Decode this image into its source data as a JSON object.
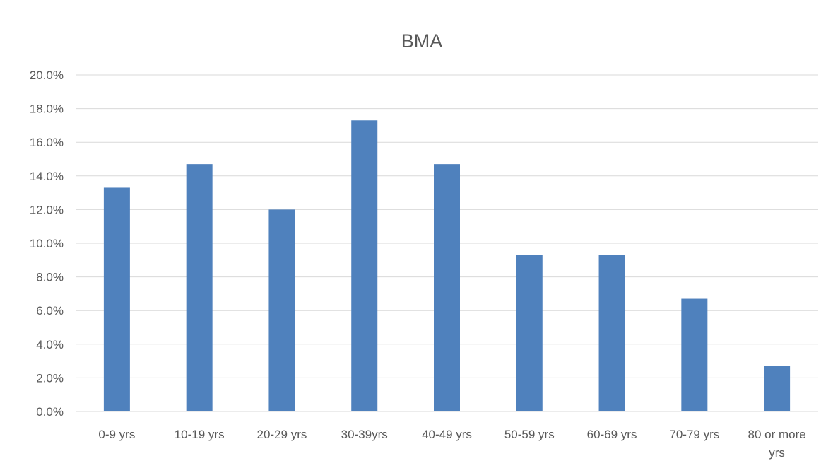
{
  "chart_data": {
    "type": "bar",
    "title": "BMA",
    "xlabel": "",
    "ylabel": "",
    "categories": [
      "0-9 yrs",
      "10-19 yrs",
      "20-29 yrs",
      "30-39yrs",
      "40-49 yrs",
      "50-59 yrs",
      "60-69 yrs",
      "70-79 yrs",
      "80 or more yrs"
    ],
    "values": [
      13.3,
      14.7,
      12.0,
      17.3,
      14.7,
      9.3,
      9.3,
      6.7,
      2.7
    ],
    "ylim": [
      0,
      20
    ],
    "yticks": [
      "0.0%",
      "2.0%",
      "4.0%",
      "6.0%",
      "8.0%",
      "10.0%",
      "12.0%",
      "14.0%",
      "16.0%",
      "18.0%",
      "20.0%"
    ],
    "grid": true,
    "legend": "none",
    "bar_color": "#4f81bd"
  }
}
